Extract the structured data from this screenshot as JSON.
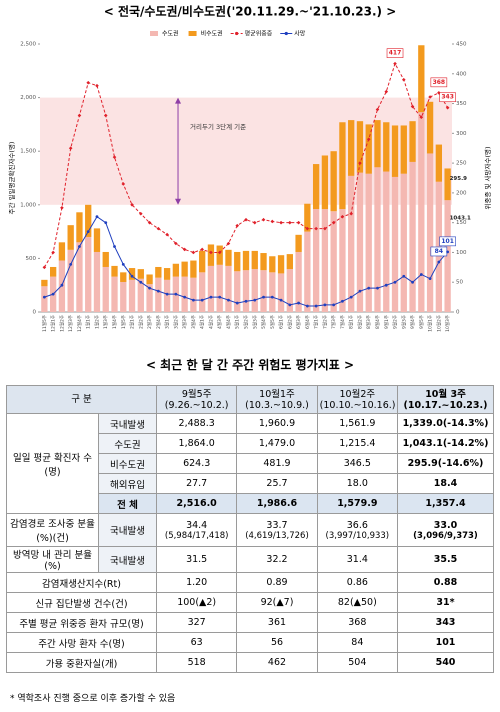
{
  "chart_data": {
    "type": "bar-line",
    "title": "< 전국/수도권/비수도권('20.11.29.~'21.10.23.) >",
    "y_label": "주간 일일평균확진자수(명)",
    "y2_label": "위중증 및 사망자수(명)",
    "annotation": {
      "text": "거리두기 3단계 기준",
      "range": [
        1000,
        2000
      ]
    },
    "categories": [
      "11월5주",
      "12월1주",
      "12월2주",
      "12월3주",
      "12월4주",
      "1월1주",
      "1월2주",
      "1월3주",
      "1월4주",
      "1월5주",
      "2월1주",
      "2월2주",
      "2월3주",
      "2월4주",
      "3월1주",
      "3월2주",
      "3월3주",
      "3월4주",
      "4월1주",
      "4월2주",
      "4월3주",
      "4월4주",
      "5월1주",
      "5월2주",
      "5월3주",
      "5월4주",
      "5월5주",
      "6월1주",
      "6월2주",
      "6월3주",
      "6월4주",
      "7월1주",
      "7월2주",
      "7월3주",
      "7월4주",
      "8월1주",
      "8월2주",
      "8월3주",
      "8월4주",
      "9월1주",
      "9월2주",
      "9월3주",
      "9월4주",
      "9월5주",
      "10월1주",
      "10월2주",
      "10월3주"
    ],
    "series": [
      {
        "name": "수도권",
        "kind": "bar",
        "color": "#f4b8b2",
        "values": [
          240,
          330,
          480,
          580,
          650,
          700,
          560,
          420,
          330,
          280,
          300,
          310,
          260,
          320,
          300,
          330,
          330,
          320,
          370,
          430,
          440,
          430,
          380,
          390,
          400,
          390,
          370,
          360,
          400,
          560,
          750,
          960,
          960,
          940,
          960,
          1270,
          1300,
          1290,
          1350,
          1310,
          1260,
          1290,
          1400,
          1864.0,
          1479.0,
          1215.4,
          1043.1
        ],
        "value_labels": [
          null,
          null,
          null,
          null,
          null,
          null,
          null,
          null,
          null,
          null,
          null,
          null,
          null,
          null,
          null,
          null,
          null,
          null,
          null,
          null,
          null,
          null,
          null,
          null,
          null,
          null,
          null,
          null,
          null,
          null,
          null,
          null,
          null,
          null,
          null,
          null,
          null,
          null,
          null,
          null,
          null,
          null,
          null,
          null,
          null,
          null,
          "1043.1"
        ]
      },
      {
        "name": "비수도권",
        "kind": "bar",
        "color": "#f39a1e",
        "values": [
          60,
          90,
          170,
          230,
          280,
          300,
          220,
          140,
          100,
          90,
          110,
          90,
          90,
          100,
          110,
          120,
          140,
          160,
          200,
          200,
          180,
          150,
          180,
          180,
          170,
          160,
          150,
          170,
          140,
          160,
          260,
          420,
          500,
          560,
          810,
          520,
          480,
          460,
          440,
          460,
          480,
          450,
          380,
          624.3,
          481.9,
          346.5,
          295.9
        ],
        "value_labels": [
          null,
          null,
          null,
          null,
          null,
          null,
          null,
          null,
          null,
          null,
          null,
          null,
          null,
          null,
          null,
          null,
          null,
          null,
          null,
          null,
          null,
          null,
          null,
          null,
          null,
          null,
          null,
          null,
          null,
          null,
          null,
          null,
          null,
          null,
          null,
          null,
          null,
          null,
          null,
          null,
          null,
          null,
          null,
          null,
          null,
          null,
          "295.9"
        ]
      },
      {
        "name": "평균위중증",
        "kind": "line",
        "axis": "y2",
        "color": "#e0202a",
        "dashed": true,
        "values": [
          75,
          100,
          175,
          275,
          330,
          385,
          380,
          330,
          260,
          215,
          180,
          165,
          150,
          140,
          130,
          115,
          105,
          100,
          105,
          100,
          100,
          115,
          145,
          155,
          150,
          155,
          152,
          150,
          150,
          150,
          140,
          140,
          140,
          150,
          160,
          165,
          250,
          290,
          340,
          370,
          417,
          390,
          345,
          327,
          361,
          368,
          343
        ],
        "value_labels": [
          null,
          null,
          null,
          null,
          null,
          null,
          null,
          null,
          null,
          null,
          null,
          null,
          null,
          null,
          null,
          null,
          null,
          null,
          null,
          null,
          null,
          null,
          null,
          null,
          null,
          null,
          null,
          null,
          null,
          null,
          null,
          null,
          null,
          null,
          null,
          null,
          null,
          null,
          null,
          null,
          "417",
          null,
          null,
          null,
          null,
          "368",
          "343"
        ]
      },
      {
        "name": "사망",
        "kind": "line",
        "axis": "y2",
        "color": "#1f3fbf",
        "dashed": false,
        "values": [
          25,
          30,
          45,
          80,
          110,
          135,
          160,
          150,
          110,
          80,
          60,
          50,
          40,
          35,
          30,
          30,
          25,
          20,
          20,
          25,
          25,
          20,
          15,
          18,
          20,
          25,
          25,
          20,
          12,
          15,
          10,
          10,
          12,
          12,
          18,
          25,
          35,
          40,
          40,
          45,
          50,
          60,
          50,
          63,
          56,
          84,
          101
        ],
        "value_labels": [
          null,
          null,
          null,
          null,
          null,
          null,
          null,
          null,
          null,
          null,
          null,
          null,
          null,
          null,
          null,
          null,
          null,
          null,
          null,
          null,
          null,
          null,
          null,
          null,
          null,
          null,
          null,
          null,
          null,
          null,
          null,
          null,
          null,
          null,
          null,
          null,
          null,
          null,
          null,
          null,
          null,
          null,
          null,
          null,
          null,
          "84",
          "101"
        ]
      }
    ],
    "ylim": [
      0,
      2500
    ],
    "yticks": [
      0,
      500,
      {
        "value": 1000,
        "label": "1,000"
      },
      {
        "value": 1500,
        "label": "1,500"
      },
      {
        "value": 2000,
        "label": "2,000"
      },
      {
        "value": 2500,
        "label": "2,500"
      }
    ],
    "y2lim": [
      0,
      450
    ],
    "y2ticks": [
      0,
      50,
      100,
      150,
      200,
      250,
      300,
      350,
      400,
      450
    ],
    "grid": false
  },
  "table": {
    "title": "< 최근 한 달 간 주간 위험도 평가지표 >",
    "header": {
      "label": "구 분",
      "weeks": [
        {
          "week": "9월5주",
          "range": "(9.26.~10.2.)"
        },
        {
          "week": "10월1주",
          "range": "(10.3.~10.9.)"
        },
        {
          "week": "10월2주",
          "range": "(10.10.~10.16.)"
        },
        {
          "week": "10월 3주",
          "range": "(10.17.~10.23.)"
        }
      ]
    },
    "sections": [
      {
        "label": "일일 평균 확진자 수(명)",
        "rows": [
          {
            "sub": "국내발생",
            "values": [
              "2,488.3",
              "1,960.9",
              "1,561.9",
              "1,339.0(-14.3%)"
            ]
          },
          {
            "sub": "수도권",
            "values": [
              "1,864.0",
              "1,479.0",
              "1,215.4",
              "1,043.1(-14.2%)"
            ]
          },
          {
            "sub": "비수도권",
            "values": [
              "624.3",
              "481.9",
              "346.5",
              "295.9(-14.6%)"
            ]
          },
          {
            "sub": "해외유입",
            "values": [
              "27.7",
              "25.7",
              "18.0",
              "18.4"
            ]
          },
          {
            "sub": "전 체",
            "values": [
              "2,516.0",
              "1,986.6",
              "1,579.9",
              "1,357.4"
            ]
          }
        ]
      },
      {
        "label": "감염경로 조사중 분율(%)(건)",
        "rows": [
          {
            "sub": "국내발생",
            "values": [
              {
                "main": "34.4",
                "detail": "(5,984/17,418)"
              },
              {
                "main": "33.7",
                "detail": "(4,619/13,726)"
              },
              {
                "main": "36.6",
                "detail": "(3,997/10,933)"
              },
              {
                "main": "33.0",
                "detail": "(3,096/9,373)"
              }
            ]
          }
        ]
      },
      {
        "label": "방역망 내 관리 분율(%)",
        "rows": [
          {
            "sub": "국내발생",
            "values": [
              "31.5",
              "32.2",
              "31.4",
              "35.5"
            ]
          }
        ]
      },
      {
        "label": "감염재생산지수(Rt)",
        "rows": [
          {
            "values": [
              "1.20",
              "0.89",
              "0.86",
              "0.88"
            ]
          }
        ]
      },
      {
        "label": "신규 집단발생 건수(건)",
        "rows": [
          {
            "values": [
              "100(▲2)",
              "92(▲7)",
              "82(▲50)",
              "31*"
            ]
          }
        ]
      },
      {
        "label": "주별 평균 위중증 환자 규모(명)",
        "rows": [
          {
            "values": [
              "327",
              "361",
              "368",
              "343"
            ]
          }
        ]
      },
      {
        "label": "주간 사망 환자 수(명)",
        "rows": [
          {
            "values": [
              "63",
              "56",
              "84",
              "101"
            ]
          }
        ]
      },
      {
        "label": "가용 중환자실(개)",
        "rows": [
          {
            "values": [
              "518",
              "462",
              "504",
              "540"
            ]
          }
        ]
      }
    ],
    "footnote": "* 역학조사 진행 중으로 이후 증가할 수 있음"
  }
}
